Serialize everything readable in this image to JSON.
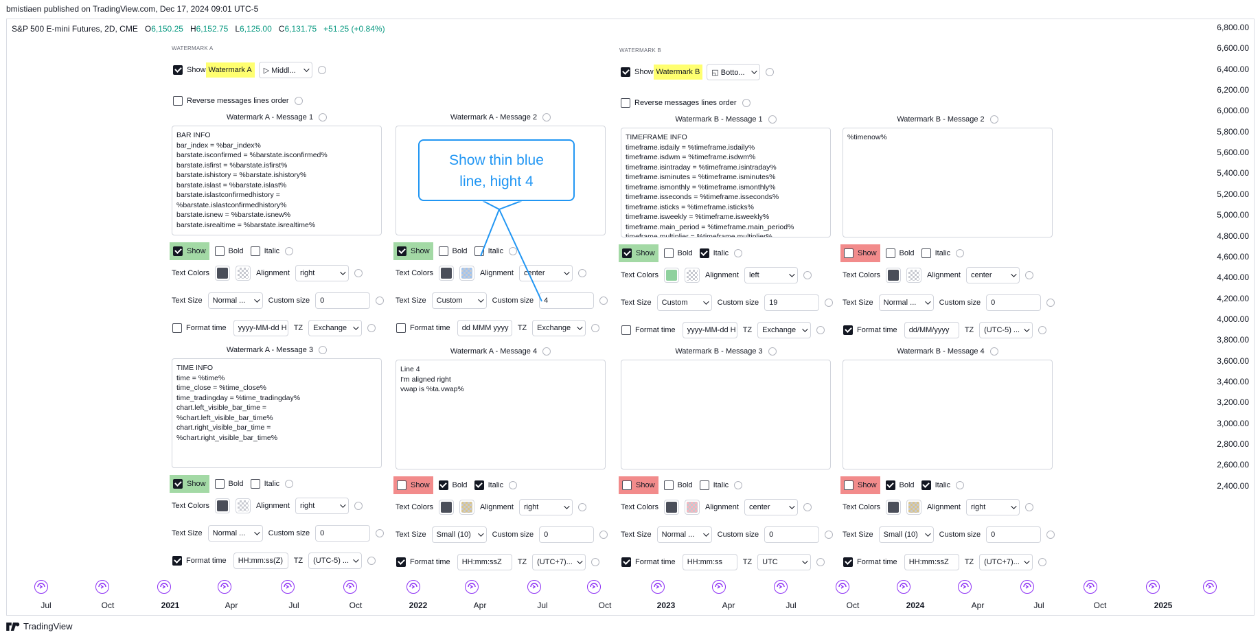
{
  "header": {
    "published": "bmistiaen published on TradingView.com, Dec 17, 2024 09:01 UTC-5"
  },
  "symbol": {
    "name": "S&P 500 E-mini Futures, 2D, CME",
    "o_label": "O",
    "o": "6,150.25",
    "h_label": "H",
    "h": "6,152.75",
    "l_label": "L",
    "l": "6,125.00",
    "c_label": "C",
    "c": "6,131.75",
    "change": "+51.25 (+0.84%)"
  },
  "yaxis": [
    "6,800.00",
    "6,600.00",
    "6,400.00",
    "6,200.00",
    "6,000.00",
    "5,800.00",
    "5,600.00",
    "5,400.00",
    "5,200.00",
    "5,000.00",
    "4,800.00",
    "4,600.00",
    "4,400.00",
    "4,200.00",
    "4,000.00",
    "3,800.00",
    "3,600.00",
    "3,400.00",
    "3,200.00",
    "3,000.00",
    "2,800.00",
    "2,600.00",
    "2,400.00"
  ],
  "xaxis": [
    "Jul",
    "Oct",
    "2021",
    "Apr",
    "Jul",
    "Oct",
    "2022",
    "Apr",
    "Jul",
    "Oct",
    "2023",
    "Apr",
    "Jul",
    "Oct",
    "2024",
    "Apr",
    "Jul",
    "Oct",
    "2025"
  ],
  "footer": {
    "brand": "TradingView"
  },
  "callout": {
    "line1": "Show thin blue",
    "line2": "line, hight 4"
  },
  "colors": {
    "dark": "#4a4e59",
    "green": "#8fd19e",
    "pink": "#f5b7c0",
    "tan": "#d9c48a",
    "blue": "#9fc4f0",
    "accent": "#2196f3"
  },
  "wmA": {
    "section": "WATERMARK A",
    "show_prefix": "Show",
    "show_hl": "Watermark A",
    "position": "▷ Middl...",
    "reverse": "Reverse messages lines order",
    "m1": {
      "title": "Watermark A - Message 1",
      "text": "BAR INFO\nbar_index = %bar_index%\nbarstate.isconfirmed = %barstate.isconfirmed%\nbarstate.isfirst = %barstate.isfirst%\nbarstate.ishistory = %barstate.ishistory%\nbarstate.islast = %barstate.islast%\nbarstate.islastconfirmedhistory =\n%barstate.islastconfirmedhistory%\nbarstate.isnew = %barstate.isnew%\nbarstate.isrealtime = %barstate.isrealtime%",
      "show": "Show",
      "bold": "Bold",
      "italic": "Italic",
      "tc": "Text Colors",
      "align_l": "Alignment",
      "align": "right",
      "ts": "Text Size",
      "size": "Normal ...",
      "cs": "Custom size",
      "csv": "0",
      "ft": "Format time",
      "fmt": "yyyy-MM-dd H",
      "tz": "TZ",
      "tzv": "Exchange"
    },
    "m2": {
      "title": "Watermark A - Message 2",
      "text": "",
      "show": "Show",
      "bold": "Bold",
      "italic": "Italic",
      "tc": "Text Colors",
      "align_l": "Alignment",
      "align": "center",
      "ts": "Text Size",
      "size": "Custom",
      "cs": "Custom size",
      "csv": "4",
      "ft": "Format time",
      "fmt": "dd MMM yyyy",
      "tz": "TZ",
      "tzv": "Exchange"
    },
    "m3": {
      "title": "Watermark A - Message 3",
      "text": "TIME INFO\ntime = %time%\ntime_close = %time_close%\ntime_tradingday = %time_tradingday%\nchart.left_visible_bar_time =\n%chart.left_visible_bar_time%\nchart.right_visible_bar_time =\n%chart.right_visible_bar_time%",
      "show": "Show",
      "bold": "Bold",
      "italic": "Italic",
      "tc": "Text Colors",
      "align_l": "Alignment",
      "align": "right",
      "ts": "Text Size",
      "size": "Normal ...",
      "cs": "Custom size",
      "csv": "0",
      "ft": "Format time",
      "fmt": "HH:mm:ss(Z)",
      "tz": "TZ",
      "tzv": "(UTC-5) ..."
    },
    "m4": {
      "title": "Watermark A - Message 4",
      "text": "Line 4\nI'm aligned right\nvwap is %ta.vwap%",
      "show": "Show",
      "bold": "Bold",
      "italic": "Italic",
      "tc": "Text Colors",
      "align_l": "Alignment",
      "align": "right",
      "ts": "Text Size",
      "size": "Small (10)",
      "cs": "Custom size",
      "csv": "0",
      "ft": "Format time",
      "fmt": "HH:mm:ssZ",
      "tz": "TZ",
      "tzv": "(UTC+7)..."
    }
  },
  "wmB": {
    "section": "WATERMARK B",
    "show_prefix": "Show",
    "show_hl": "Watermark B",
    "position": "◱ Botto...",
    "reverse": "Reverse messages lines order",
    "m1": {
      "title": "Watermark B - Message 1",
      "text": "TIMEFRAME INFO\ntimeframe.isdaily = %timeframe.isdaily%\ntimeframe.isdwm = %timeframe.isdwm%\ntimeframe.isintraday = %timeframe.isintraday%\ntimeframe.isminutes = %timeframe.isminutes%\ntimeframe.ismonthly = %timeframe.ismonthly%\ntimeframe.isseconds = %timeframe.isseconds%\ntimeframe.isticks = %timeframe.isticks%\ntimeframe.isweekly = %timeframe.isweekly%\ntimeframe.main_period = %timeframe.main_period%\ntimeframe.multiplier = %timeframe.multiplier%",
      "show": "Show",
      "bold": "Bold",
      "italic": "Italic",
      "tc": "Text Colors",
      "align_l": "Alignment",
      "align": "left",
      "ts": "Text Size",
      "size": "Custom",
      "cs": "Custom size",
      "csv": "19",
      "ft": "Format time",
      "fmt": "yyyy-MM-dd H",
      "tz": "TZ",
      "tzv": "Exchange"
    },
    "m2": {
      "title": "Watermark B - Message 2",
      "text": "%timenow%",
      "show": "Show",
      "bold": "Bold",
      "italic": "Italic",
      "tc": "Text Colors",
      "align_l": "Alignment",
      "align": "center",
      "ts": "Text Size",
      "size": "Normal ...",
      "cs": "Custom size",
      "csv": "0",
      "ft": "Format time",
      "fmt": "dd/MM/yyyy",
      "tz": "TZ",
      "tzv": "(UTC-5) ..."
    },
    "m3": {
      "title": "Watermark B - Message 3",
      "text": "",
      "show": "Show",
      "bold": "Bold",
      "italic": "Italic",
      "tc": "Text Colors",
      "align_l": "Alignment",
      "align": "center",
      "ts": "Text Size",
      "size": "Normal ...",
      "cs": "Custom size",
      "csv": "0",
      "ft": "Format time",
      "fmt": "HH:mm:ss",
      "tz": "TZ",
      "tzv": "UTC"
    },
    "m4": {
      "title": "Watermark B - Message 4",
      "text": "",
      "show": "Show",
      "bold": "Bold",
      "italic": "Italic",
      "tc": "Text Colors",
      "align_l": "Alignment",
      "align": "right",
      "ts": "Text Size",
      "size": "Small (10)",
      "cs": "Custom size",
      "csv": "0",
      "ft": "Format time",
      "fmt": "HH:mm:ssZ",
      "tz": "TZ",
      "tzv": "(UTC+7)..."
    }
  }
}
